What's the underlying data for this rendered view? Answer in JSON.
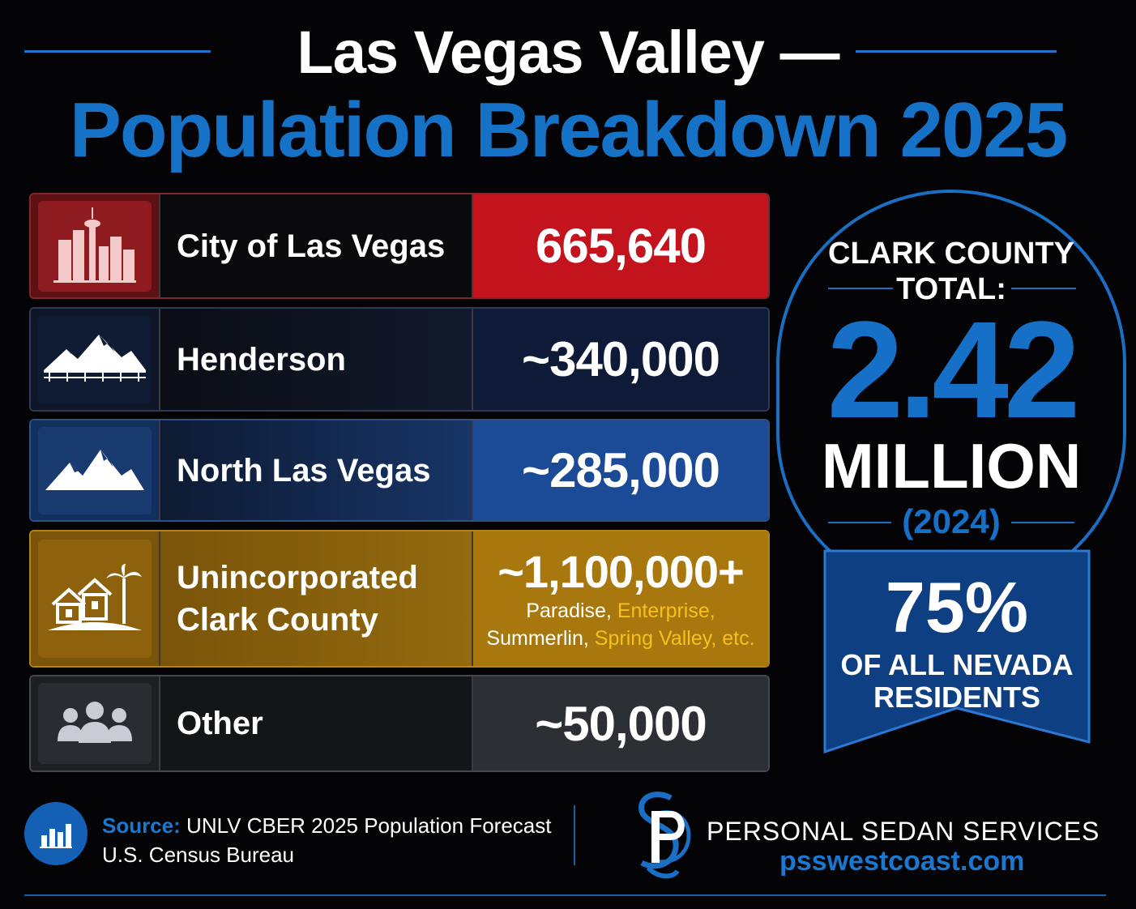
{
  "header": {
    "title_line1": "Las Vegas Valley —",
    "title_line2": "Population Breakdown 2025"
  },
  "rows": [
    {
      "name": "City of Las Vegas",
      "value": "665,640",
      "icon": "skyline-icon"
    },
    {
      "name": "Henderson",
      "value": "~340,000",
      "icon": "mountain-bridge-icon"
    },
    {
      "name": "North Las Vegas",
      "value": "~285,000",
      "icon": "mountain-icon"
    },
    {
      "name_line1": "Unincorporated",
      "name_line2": "Clark County",
      "value": "~1,100,000+",
      "sub": {
        "a": "Paradise, ",
        "b": "Enterprise,",
        "c": "Summerlin, ",
        "d": "Spring Valley, etc."
      },
      "icon": "houses-palm-icon"
    },
    {
      "name": "Other",
      "value": "~50,000",
      "icon": "people-group-icon"
    }
  ],
  "badge": {
    "label_line1": "CLARK COUNTY",
    "label_line2": "TOTAL:",
    "number": "2.42",
    "unit": "MILLION",
    "year": "(2024)",
    "ribbon_percent": "75%",
    "ribbon_line1": "OF ALL NEVADA",
    "ribbon_line2": "RESIDENTS"
  },
  "footer": {
    "source_label": "Source:",
    "source_line1": "UNLV CBER 2025 Population Forecast",
    "source_line2": "U.S. Census Bureau",
    "brand_name": "PERSONAL SEDAN SERVICES",
    "brand_url": "psswestcoast.com"
  },
  "colors": {
    "accent_blue": "#1672c6",
    "las_vegas_red": "#c3141e",
    "unincorporated_gold": "#a8780f",
    "highlight_yellow": "#f6c11c"
  }
}
